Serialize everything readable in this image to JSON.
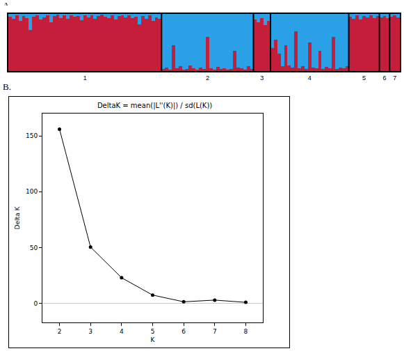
{
  "chart_data": [
    {
      "type": "bar",
      "stacked": true,
      "annotations": [
        "A."
      ],
      "tick_labels": "x",
      "grid": false,
      "ylim": [
        0,
        1
      ],
      "categories": [
        null,
        null,
        null,
        null,
        null,
        null,
        null,
        null,
        null,
        null,
        null,
        null,
        null,
        null,
        null,
        null,
        null,
        null,
        null,
        null,
        null,
        null,
        "1",
        null,
        null,
        null,
        null,
        null,
        null,
        null,
        null,
        null,
        null,
        null,
        null,
        null,
        null,
        null,
        null,
        null,
        null,
        null,
        null,
        null,
        null,
        null,
        null,
        null,
        null,
        null,
        null,
        null,
        null,
        null,
        null,
        null,
        null,
        null,
        "2",
        null,
        null,
        null,
        null,
        null,
        null,
        null,
        null,
        null,
        null,
        null,
        null,
        null,
        null,
        null,
        "3",
        null,
        null,
        null,
        null,
        null,
        null,
        null,
        null,
        null,
        null,
        null,
        null,
        null,
        "4",
        null,
        null,
        null,
        null,
        null,
        null,
        null,
        null,
        null,
        null,
        null,
        null,
        null,
        null,
        null,
        "5",
        null,
        null,
        null,
        null,
        null,
        "6",
        null,
        null,
        "7",
        null
      ],
      "series": [
        {
          "color": "#c41e3a",
          "values": [
            0.95,
            0.92,
            0.97,
            0.88,
            0.96,
            0.93,
            0.72,
            0.95,
            0.98,
            0.9,
            0.94,
            0.97,
            0.85,
            0.96,
            0.99,
            0.93,
            0.97,
            0.91,
            0.98,
            0.95,
            0.96,
            0.89,
            0.97,
            0.94,
            0.98,
            0.92,
            0.96,
            0.99,
            0.95,
            0.93,
            0.97,
            0.9,
            0.96,
            0.98,
            0.94,
            0.97,
            0.93,
            0.95,
            0.82,
            0.96,
            0.92,
            0.97,
            0.88,
            0.94,
            0.91,
            0.04,
            0.06,
            0.03,
            0.45,
            0.05,
            0.08,
            0.03,
            0.04,
            0.1,
            0.05,
            0.03,
            0.06,
            0.04,
            0.6,
            0.05,
            0.03,
            0.07,
            0.04,
            0.05,
            0.03,
            0.04,
            0.35,
            0.06,
            0.05,
            0.03,
            0.08,
            0.04,
            0.9,
            0.85,
            0.93,
            0.8,
            0.88,
            0.4,
            0.55,
            0.3,
            0.08,
            0.45,
            0.1,
            0.06,
            0.7,
            0.05,
            0.08,
            0.04,
            0.5,
            0.06,
            0.05,
            0.35,
            0.04,
            0.07,
            0.05,
            0.6,
            0.04,
            0.06,
            0.05,
            0.08,
            0.95,
            0.92,
            0.97,
            0.9,
            0.96,
            0.94,
            0.98,
            0.93,
            0.96,
            0.94,
            0.96,
            0.93,
            0.95,
            0.97,
            0.94
          ]
        },
        {
          "color": "#2aa0e6",
          "values": [
            0.05,
            0.08,
            0.03,
            0.12,
            0.04,
            0.07,
            0.28,
            0.05,
            0.02,
            0.1,
            0.06,
            0.03,
            0.15,
            0.04,
            0.01,
            0.07,
            0.03,
            0.09,
            0.02,
            0.05,
            0.04,
            0.11,
            0.03,
            0.06,
            0.02,
            0.08,
            0.04,
            0.01,
            0.05,
            0.07,
            0.03,
            0.1,
            0.04,
            0.02,
            0.06,
            0.03,
            0.07,
            0.05,
            0.18,
            0.04,
            0.08,
            0.03,
            0.12,
            0.06,
            0.09,
            0.96,
            0.94,
            0.97,
            0.55,
            0.95,
            0.92,
            0.97,
            0.96,
            0.9,
            0.95,
            0.97,
            0.94,
            0.96,
            0.4,
            0.95,
            0.97,
            0.93,
            0.96,
            0.95,
            0.97,
            0.96,
            0.65,
            0.94,
            0.95,
            0.97,
            0.92,
            0.96,
            0.1,
            0.15,
            0.07,
            0.2,
            0.12,
            0.6,
            0.45,
            0.7,
            0.92,
            0.55,
            0.9,
            0.94,
            0.3,
            0.95,
            0.92,
            0.96,
            0.5,
            0.94,
            0.95,
            0.65,
            0.96,
            0.93,
            0.95,
            0.4,
            0.96,
            0.94,
            0.95,
            0.92,
            0.05,
            0.08,
            0.03,
            0.1,
            0.04,
            0.06,
            0.02,
            0.07,
            0.04,
            0.06,
            0.04,
            0.07,
            0.05,
            0.03,
            0.06
          ]
        }
      ]
    },
    {
      "type": "line",
      "annotations": [
        "B."
      ],
      "title": "DeltaK = mean(|L''(K)|) / sd(L(K))",
      "x_label": "K",
      "y_label": "Delta K",
      "grid": false,
      "marker": "circle",
      "color": "#000000",
      "x": [
        2,
        3,
        4,
        5,
        6,
        7,
        8
      ],
      "values": [
        156,
        50.5,
        23,
        7.5,
        1.5,
        3,
        1
      ],
      "xlim": [
        1.45,
        8.55
      ],
      "ylim": [
        -17,
        170
      ],
      "xticks": [
        2,
        3,
        4,
        5,
        6,
        7,
        8
      ],
      "yticks": [
        0,
        50,
        100,
        150
      ]
    }
  ]
}
